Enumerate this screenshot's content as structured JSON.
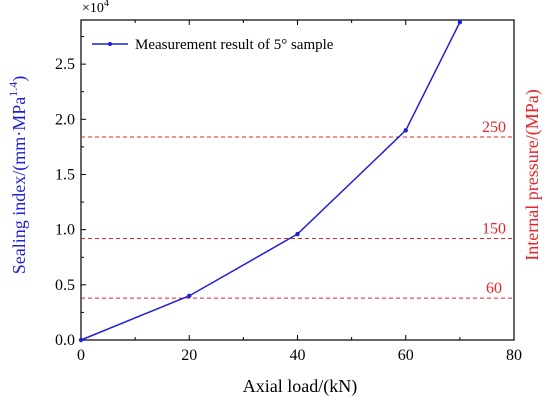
{
  "chart_data": {
    "type": "line",
    "xlabel": "Axial load/(kN)",
    "ylabel_left": "Sealing index/(mm·MPa",
    "ylabel_left_sup": "1.4",
    "ylabel_left_close": ")",
    "ylabel_right": "Internal pressure/(MPa)",
    "y_multiplier_base": "×10",
    "y_multiplier_exp": "4",
    "xlim": [
      0,
      80
    ],
    "ylim": [
      0,
      2.9
    ],
    "x_ticks": [
      "0",
      "20",
      "40",
      "60",
      "80"
    ],
    "y_ticks": [
      "0.0",
      "0.5",
      "1.0",
      "1.5",
      "2.0",
      "2.5"
    ],
    "series": [
      {
        "name": "Measurement result of 5° sample",
        "color": "#1f1fd6",
        "x": [
          0,
          20,
          40,
          60,
          70
        ],
        "y": [
          0.0,
          0.4,
          0.96,
          1.9,
          2.88
        ]
      }
    ],
    "reference_lines": [
      {
        "label": "60",
        "y": 0.38,
        "color": "#e8242a"
      },
      {
        "label": "150",
        "y": 0.92,
        "color": "#e8242a"
      },
      {
        "label": "250",
        "y": 1.84,
        "color": "#e8242a"
      }
    ],
    "legend_position": "top-left",
    "grid": false,
    "colors": {
      "series": "#1f1fd6",
      "reference": "#e8242a",
      "left_axis_title": "#1f1fd6",
      "right_axis_title": "#e8242a"
    }
  }
}
